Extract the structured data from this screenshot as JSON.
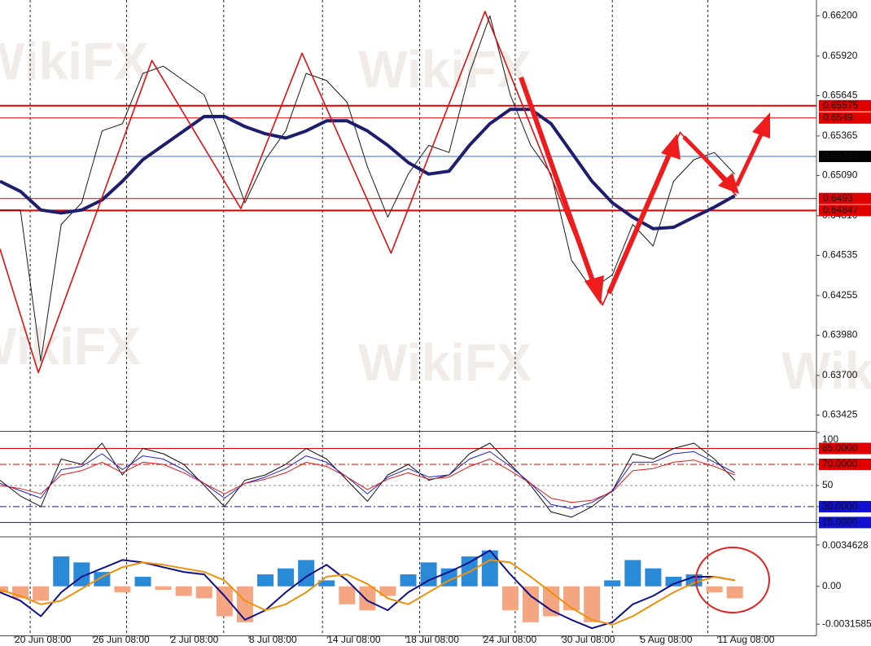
{
  "watermark": "WikiFX",
  "chart_data": [
    {
      "type": "line",
      "xlim": [
        0,
        100
      ],
      "ylim": [
        0.6332,
        0.6631
      ],
      "yticks": [
        {
          "value": 0.662,
          "label": "0.66200"
        },
        {
          "value": 0.6592,
          "label": "0.65920"
        },
        {
          "value": 0.65645,
          "label": "0.65645"
        },
        {
          "value": 0.65365,
          "label": "0.65365"
        },
        {
          "value": 0.6509,
          "label": "0.65090"
        },
        {
          "value": 0.6481,
          "label": "0.64810"
        },
        {
          "value": 0.64535,
          "label": "0.64535"
        },
        {
          "value": 0.64255,
          "label": "0.64255"
        },
        {
          "value": 0.6398,
          "label": "0.63980"
        },
        {
          "value": 0.637,
          "label": "0.63700"
        },
        {
          "value": 0.63425,
          "label": "0.63425"
        }
      ],
      "xgrid": [
        3.7,
        15.5,
        27.4,
        39.5,
        51.4,
        63.1,
        75.0,
        86.7
      ],
      "x": [
        0,
        2.5,
        5,
        7.5,
        10,
        12.5,
        15,
        17.5,
        20,
        22.5,
        25,
        27.5,
        30,
        32.5,
        35,
        37.5,
        40,
        42.5,
        45,
        47.5,
        50,
        52.5,
        55,
        57.5,
        60,
        62.5,
        65,
        67.5,
        70,
        72.5,
        75,
        77.5,
        80,
        82.5,
        85,
        87.5,
        90
      ],
      "series": [
        {
          "kind": "line",
          "color": "#1a1a1a",
          "width": 1,
          "values": [
            0.6485,
            0.6485,
            0.638,
            0.6475,
            0.649,
            0.654,
            0.6545,
            0.658,
            0.6585,
            0.6575,
            0.6565,
            0.653,
            0.649,
            0.652,
            0.654,
            0.658,
            0.6575,
            0.656,
            0.6515,
            0.648,
            0.651,
            0.653,
            0.6525,
            0.658,
            0.662,
            0.6565,
            0.653,
            0.651,
            0.645,
            0.643,
            0.644,
            0.6475,
            0.646,
            0.6505,
            0.652,
            0.6525,
            0.651
          ]
        },
        {
          "kind": "line",
          "color": "#1e1e6e",
          "width": 4,
          "values": [
            0.6505,
            0.6498,
            0.6485,
            0.6483,
            0.6485,
            0.6492,
            0.6505,
            0.652,
            0.653,
            0.654,
            0.655,
            0.655,
            0.6543,
            0.6538,
            0.6535,
            0.654,
            0.6547,
            0.6547,
            0.654,
            0.653,
            0.6518,
            0.651,
            0.6512,
            0.653,
            0.6545,
            0.6555,
            0.6555,
            0.6545,
            0.6525,
            0.6505,
            0.649,
            0.648,
            0.6472,
            0.6473,
            0.648,
            0.6487,
            0.6495
          ]
        },
        {
          "kind": "line",
          "color": "#e01010",
          "width": 1.6,
          "x": [
            0,
            4.7,
            18.6,
            29.5,
            37,
            47.9,
            59.4,
            73.8,
            83.3,
            90.2
          ],
          "values": [
            0.6458,
            0.6372,
            0.6589,
            0.6486,
            0.6594,
            0.6455,
            0.6623,
            0.6419,
            0.6539,
            0.6495
          ]
        }
      ],
      "hlines": [
        {
          "value": 0.65575,
          "color": "#e00000",
          "width": 2,
          "box": "#e00000"
        },
        {
          "value": 0.6549,
          "color": "#e00000",
          "width": 1,
          "box": "#e00000"
        },
        {
          "value": 0.65223,
          "color": "#3a6ad8",
          "width": 1,
          "box": "#000000"
        },
        {
          "value": 0.6493,
          "color": "#e00000",
          "width": 1,
          "box": "#e00000"
        },
        {
          "value": 0.64847,
          "color": "#e00000",
          "width": 2,
          "box": "#e00000"
        }
      ]
    },
    {
      "type": "line",
      "xlim": [
        0,
        100
      ],
      "ylim": [
        3,
        100
      ],
      "yticks": [
        100,
        {
          "value": 85,
          "label": "85.0000"
        },
        {
          "value": 70,
          "label": "70.0000"
        },
        50,
        {
          "value": 30,
          "label": "30.0000"
        },
        {
          "value": 15,
          "label": "15.0000"
        }
      ],
      "tick_bg": [
        "#ffffff",
        "#e00000",
        "#e00000",
        "#ffffff",
        "#1010d0",
        "#1010d0"
      ],
      "hlines": [
        {
          "value": 85,
          "color": "#e00000",
          "width": 1
        },
        {
          "value": 70,
          "color": "#e00000",
          "width": 1,
          "dash": "8 3 2 3"
        },
        {
          "value": 50,
          "color": "#888888",
          "width": 1,
          "dash": "3 3"
        },
        {
          "value": 30,
          "color": "#1010d0",
          "width": 1,
          "dash": "8 3 2 3"
        },
        {
          "value": 15,
          "color": "#1010d0",
          "width": 1
        }
      ],
      "x": [
        0,
        2.5,
        5,
        7.5,
        10,
        12.5,
        15,
        17.5,
        20,
        22.5,
        25,
        27.5,
        30,
        32.5,
        35,
        37.5,
        40,
        42.5,
        45,
        47.5,
        50,
        52.5,
        55,
        57.5,
        60,
        62.5,
        65,
        67.5,
        70,
        72.5,
        75,
        77.5,
        80,
        82.5,
        85,
        87.5,
        90
      ],
      "series": [
        {
          "kind": "line",
          "color": "#111111",
          "width": 1,
          "values": [
            55,
            40,
            30,
            75,
            70,
            90,
            60,
            85,
            80,
            70,
            50,
            30,
            55,
            60,
            70,
            85,
            75,
            55,
            35,
            60,
            70,
            55,
            60,
            80,
            90,
            70,
            50,
            25,
            20,
            30,
            45,
            80,
            75,
            85,
            90,
            75,
            55
          ]
        },
        {
          "kind": "line",
          "color": "#2020d0",
          "width": 1,
          "values": [
            52,
            45,
            38,
            65,
            68,
            80,
            65,
            78,
            75,
            65,
            52,
            38,
            52,
            58,
            66,
            78,
            72,
            58,
            42,
            58,
            66,
            58,
            60,
            75,
            82,
            68,
            52,
            32,
            28,
            34,
            45,
            72,
            72,
            80,
            82,
            72,
            62
          ]
        },
        {
          "kind": "line",
          "color": "#e01818",
          "width": 1,
          "values": [
            50,
            47,
            42,
            60,
            64,
            72,
            62,
            72,
            70,
            62,
            52,
            42,
            52,
            56,
            62,
            72,
            68,
            58,
            46,
            56,
            62,
            56,
            58,
            68,
            75,
            64,
            52,
            38,
            34,
            36,
            44,
            64,
            66,
            72,
            74,
            68,
            60
          ]
        }
      ]
    },
    {
      "type": "bar",
      "xlim": [
        0,
        100
      ],
      "ylim": [
        -0.0041,
        0.004
      ],
      "yticks": [
        0.0034628,
        {
          "value": 0,
          "label": "0.00"
        },
        -0.0031585
      ],
      "xticks": [
        {
          "value": 1.8,
          "label": "20 Jun 08:00"
        },
        {
          "value": 11.4,
          "label": "26 Jun 08:00"
        },
        {
          "value": 20.9,
          "label": "2 Jul 08:00"
        },
        {
          "value": 30.5,
          "label": "8 Jul 08:00"
        },
        {
          "value": 40.1,
          "label": "14 Jul 08:00"
        },
        {
          "value": 49.7,
          "label": "18 Jul 08:00"
        },
        {
          "value": 59.2,
          "label": "24 Jul 08:00"
        },
        {
          "value": 68.8,
          "label": "30 Jul 08:00"
        },
        {
          "value": 78.4,
          "label": "5 Aug 08:00"
        },
        {
          "value": 87.9,
          "label": "11 Aug 08:00"
        }
      ],
      "x": [
        0,
        2.5,
        5,
        7.5,
        10,
        12.5,
        15,
        17.5,
        20,
        22.5,
        25,
        27.5,
        30,
        32.5,
        35,
        37.5,
        40,
        42.5,
        45,
        47.5,
        50,
        52.5,
        55,
        57.5,
        60,
        62.5,
        65,
        67.5,
        70,
        72.5,
        75,
        77.5,
        80,
        82.5,
        85,
        87.5,
        90
      ],
      "series": [
        {
          "kind": "bar",
          "color": "#2a8ad8",
          "neg_color": "#f4a582",
          "values": [
            -0.0005,
            -0.001,
            -0.0012,
            0.0025,
            0.002,
            0.0012,
            -0.0005,
            0.0008,
            -0.0003,
            -0.0008,
            -0.001,
            -0.0025,
            -0.003,
            0.001,
            0.0015,
            0.0022,
            0.0005,
            -0.0015,
            -0.002,
            -0.0008,
            0.001,
            0.002,
            0.0015,
            0.0025,
            0.003,
            -0.002,
            -0.003,
            -0.0025,
            -0.002,
            -0.003,
            0.0005,
            0.0022,
            0.0015,
            0.0008,
            0.001,
            -0.0005,
            -0.001
          ]
        },
        {
          "kind": "line",
          "color": "#10108a",
          "width": 2,
          "values": [
            -0.0005,
            -0.0012,
            -0.0025,
            -0.0005,
            0.0008,
            0.0015,
            0.0022,
            0.002,
            0.0016,
            0.0012,
            0.001,
            -0.0008,
            -0.0028,
            -0.002,
            -0.0005,
            0.0008,
            0.0018,
            0.0005,
            -0.0012,
            -0.002,
            -0.0005,
            0.0005,
            0.0012,
            0.002,
            0.003,
            0.001,
            -0.0008,
            -0.002,
            -0.0028,
            -0.0035,
            -0.003,
            -0.0015,
            -0.0008,
            0.0002,
            0.0008,
            0.0008,
            0.0005
          ]
        },
        {
          "kind": "line",
          "color": "#f0900a",
          "width": 2,
          "values": [
            -0.0003,
            -0.0008,
            -0.0015,
            -0.0012,
            -0.0002,
            0.0008,
            0.0016,
            0.002,
            0.0018,
            0.0015,
            0.0012,
            0.0005,
            -0.0012,
            -0.002,
            -0.0015,
            -0.0005,
            0.0008,
            0.001,
            0.0002,
            -0.001,
            -0.0015,
            -0.0005,
            0.0005,
            0.0012,
            0.0022,
            0.002,
            0.0008,
            -0.0005,
            -0.0018,
            -0.0028,
            -0.0032,
            -0.0025,
            -0.0015,
            -0.0005,
            0.0003,
            0.0008,
            0.0005
          ]
        }
      ]
    }
  ]
}
